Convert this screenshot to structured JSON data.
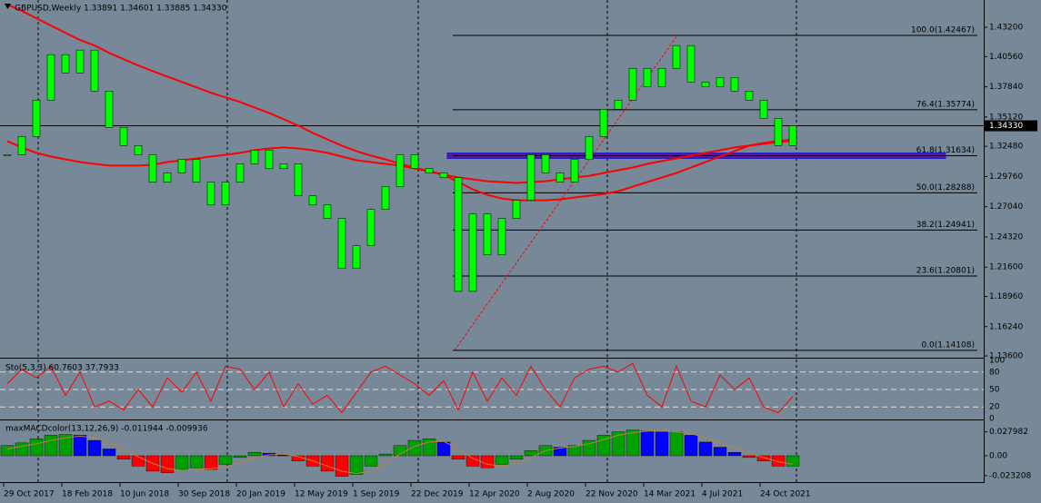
{
  "chart_data": [
    {
      "type": "candlestick",
      "title": "GBPUSD,Weekly 1.33891 1.34601 1.33885 1.34330",
      "x": [
        0,
        4,
        8,
        12,
        16,
        20,
        24,
        28,
        32,
        36,
        40,
        44,
        48,
        52,
        56,
        60,
        64,
        68,
        72,
        76,
        80,
        84,
        88,
        92,
        96,
        100,
        104,
        108,
        112,
        116,
        120,
        124,
        128,
        132,
        136,
        140,
        144,
        148,
        152,
        156,
        160,
        164,
        168,
        172,
        176,
        180,
        184,
        188,
        192,
        196,
        200,
        204,
        208,
        212,
        216
      ],
      "values": [
        1.3172,
        1.3336,
        1.3664,
        1.4074,
        1.391,
        1.4115,
        1.3746,
        1.3418,
        1.3254,
        1.3172,
        1.2926,
        1.3008,
        1.3131,
        1.2926,
        1.2721,
        1.2926,
        1.309,
        1.3213,
        1.3049,
        1.309,
        1.2803,
        1.2721,
        1.2598,
        1.2147,
        1.2352,
        1.268,
        1.2885,
        1.3172,
        1.3049,
        1.3008,
        1.2967,
        1.1942,
        1.2639,
        1.227,
        1.2598,
        1.2762,
        1.3172,
        1.3008,
        1.2926,
        1.3131,
        1.3336,
        1.3582,
        1.3664,
        1.3951,
        1.3787,
        1.3951,
        1.4156,
        1.3828,
        1.3787,
        1.3869,
        1.3746,
        1.3664,
        1.35,
        1.3254,
        1.3433
      ],
      "color": "#00ff00",
      "lines": [
        {
          "color": "#ff0000",
          "values": [
            1.4525,
            1.4468,
            1.4402,
            1.4336,
            1.4271,
            1.4205,
            1.4156,
            1.409,
            1.4033,
            1.3976,
            1.3926,
            1.3877,
            1.3828,
            1.3779,
            1.373,
            1.3689,
            1.3648,
            1.3598,
            1.3549,
            1.3492,
            1.3434,
            1.3369,
            1.3311,
            1.3254,
            1.3205,
            1.3164,
            1.3131,
            1.309,
            1.3057,
            1.3024,
            1.2992,
            1.2967,
            1.2951,
            1.2934,
            1.2926,
            1.2918,
            1.2926,
            1.2934,
            1.2951,
            1.2967,
            1.2983,
            1.3008,
            1.3033,
            1.3057,
            1.309,
            1.3115,
            1.3139,
            1.3164,
            1.3189,
            1.3213,
            1.3238,
            1.3254,
            1.327,
            1.3287,
            1.3295
          ]
        },
        {
          "color": "#ff0000",
          "values": [
            1.3295,
            1.3238,
            1.3189,
            1.3156,
            1.3131,
            1.3106,
            1.309,
            1.3074,
            1.3074,
            1.3074,
            1.3082,
            1.3106,
            1.3123,
            1.3139,
            1.3156,
            1.3172,
            1.3189,
            1.3213,
            1.3229,
            1.3238,
            1.3229,
            1.3213,
            1.3189,
            1.3156,
            1.3123,
            1.3106,
            1.309,
            1.3074,
            1.3049,
            1.3024,
            1.2992,
            1.2926,
            1.286,
            1.2811,
            1.2778,
            1.2762,
            1.2762,
            1.2762,
            1.277,
            1.2787,
            1.2803,
            1.2819,
            1.2844,
            1.2885,
            1.2926,
            1.2967,
            1.3008,
            1.3057,
            1.3106,
            1.3156,
            1.3205,
            1.3254,
            1.3279,
            1.3295,
            1.3311
          ]
        }
      ],
      "fib_levels": [
        {
          "label": "100.0(1.42467)",
          "value": 1.42467
        },
        {
          "label": "76.4(1.35774)",
          "value": 1.35774
        },
        {
          "label": "61.8(1.31634)",
          "value": 1.31634
        },
        {
          "label": "50.0(1.28288)",
          "value": 1.28288
        },
        {
          "label": "38.2(1.24941)",
          "value": 1.24941
        },
        {
          "label": "23.6(1.20801)",
          "value": 1.20801
        },
        {
          "label": "0.0(1.14108)",
          "value": 1.14108
        }
      ],
      "current_price": {
        "value": 1.3433,
        "label": "1.34330"
      },
      "xlim": [
        -2,
        268.5
      ],
      "xticks": [
        {
          "value": -1,
          "label": "29 Oct 2017"
        },
        {
          "value": 15,
          "label": "18 Feb 2018"
        },
        {
          "value": 31,
          "label": "10 Jun 2018"
        },
        {
          "value": 47,
          "label": "30 Sep 2018"
        },
        {
          "value": 63,
          "label": "20 Jan 2019"
        },
        {
          "value": 79,
          "label": "12 May 2019"
        },
        {
          "value": 95,
          "label": "1 Sep 2019"
        },
        {
          "value": 111,
          "label": "22 Dec 2019"
        },
        {
          "value": 127,
          "label": "12 Apr 2020"
        },
        {
          "value": 143,
          "label": "2 Aug 2020"
        },
        {
          "value": 159,
          "label": "22 Nov 2020"
        },
        {
          "value": 175,
          "label": "14 Mar 2021"
        },
        {
          "value": 191,
          "label": "4 Jul 2021"
        },
        {
          "value": 207,
          "label": "24 Oct 2021"
        }
      ],
      "ylim": [
        1.1344,
        1.4566
      ],
      "yticks": [
        {
          "value": 1.432,
          "label": "1.43200"
        },
        {
          "value": 1.4056,
          "label": "1.40560"
        },
        {
          "value": 1.3784,
          "label": "1.37840"
        },
        {
          "value": 1.3512,
          "label": "1.35120"
        },
        {
          "value": 1.3248,
          "label": "1.32480"
        },
        {
          "value": 1.2976,
          "label": "1.29760"
        },
        {
          "value": 1.2704,
          "label": "1.27040"
        },
        {
          "value": 1.2432,
          "label": "1.24320"
        },
        {
          "value": 1.216,
          "label": "1.21600"
        },
        {
          "value": 1.1896,
          "label": "1.18960"
        },
        {
          "value": 1.1624,
          "label": "1.16240"
        },
        {
          "value": 1.136,
          "label": "1.13600"
        }
      ]
    },
    {
      "type": "line",
      "title": "Sto(5,3,3) 60.7603 37.7933",
      "color": "#ff0000",
      "values": [
        60,
        85,
        70,
        90,
        40,
        80,
        20,
        30,
        15,
        50,
        20,
        70,
        45,
        80,
        30,
        90,
        85,
        50,
        80,
        20,
        60,
        25,
        40,
        10,
        45,
        80,
        90,
        75,
        60,
        40,
        65,
        15,
        80,
        30,
        70,
        40,
        90,
        50,
        20,
        70,
        85,
        90,
        80,
        95,
        40,
        20,
        90,
        30,
        20,
        75,
        50,
        70,
        20,
        10,
        37.7933
      ],
      "ylim": [
        0,
        100
      ],
      "yticks": [
        0,
        20,
        50,
        80,
        100
      ]
    },
    {
      "type": "histogram-macd",
      "title": "maxMACDcolor(13,12,26,9) -0.011944 -0.009936",
      "values": [
        0.012,
        0.015,
        0.02,
        0.024,
        0.025,
        0.024,
        0.018,
        0.008,
        -0.004,
        -0.012,
        -0.018,
        -0.02,
        -0.016,
        -0.014,
        -0.016,
        -0.01,
        -0.002,
        0.004,
        0.003,
        0.001,
        -0.006,
        -0.012,
        -0.018,
        -0.024,
        -0.022,
        -0.012,
        0.002,
        0.012,
        0.018,
        0.02,
        0.016,
        -0.004,
        -0.012,
        -0.014,
        -0.01,
        -0.004,
        0.006,
        0.012,
        0.01,
        0.012,
        0.018,
        0.024,
        0.028,
        0.03,
        0.029,
        0.028,
        0.028,
        0.024,
        0.016,
        0.01,
        0.004,
        -0.002,
        -0.006,
        -0.012,
        -0.011944
      ],
      "signal": [
        0.008,
        0.011,
        0.014,
        0.018,
        0.021,
        0.023,
        0.021,
        0.016,
        0.008,
        -0.001,
        -0.009,
        -0.015,
        -0.017,
        -0.016,
        -0.015,
        -0.013,
        -0.008,
        -0.002,
        0.001,
        0.002,
        -0.001,
        -0.006,
        -0.012,
        -0.018,
        -0.021,
        -0.018,
        -0.009,
        0.002,
        0.011,
        0.016,
        0.017,
        0.008,
        -0.003,
        -0.01,
        -0.012,
        -0.009,
        -0.002,
        0.006,
        0.009,
        0.011,
        0.014,
        0.019,
        0.024,
        0.027,
        0.029,
        0.029,
        0.028,
        0.026,
        0.021,
        0.015,
        0.009,
        0.003,
        -0.002,
        -0.007,
        -0.009936
      ],
      "colors": {
        "rising": "#00a000",
        "falling_positive": "#0000ff",
        "falling_negative": "#ff0000",
        "signal": "#c08040"
      },
      "ylim": [
        -0.0298,
        0.0404
      ],
      "yticks": [
        0.027982,
        {
          "value": 0,
          "label": "0.00"
        },
        -0.023208
      ]
    }
  ]
}
